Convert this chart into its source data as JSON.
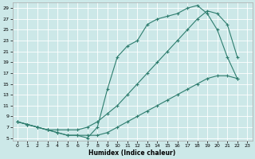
{
  "xlabel": "Humidex (Indice chaleur)",
  "background_color": "#cce8e8",
  "grid_color": "#ffffff",
  "line_color": "#2e7d6e",
  "xlim": [
    -0.5,
    23.5
  ],
  "ylim": [
    4.5,
    30
  ],
  "xticks": [
    0,
    1,
    2,
    3,
    4,
    5,
    6,
    7,
    8,
    9,
    10,
    11,
    12,
    13,
    14,
    15,
    16,
    17,
    18,
    19,
    20,
    21,
    22,
    23
  ],
  "yticks": [
    5,
    7,
    9,
    11,
    13,
    15,
    17,
    19,
    21,
    23,
    25,
    27,
    29
  ],
  "line1_x": [
    0,
    1,
    2,
    3,
    4,
    5,
    6,
    7,
    8,
    9,
    10,
    11,
    12,
    13,
    14,
    15,
    16,
    17,
    18,
    19,
    20,
    21,
    22
  ],
  "line1_y": [
    8,
    7.5,
    7,
    6.5,
    6,
    5.5,
    5.5,
    5,
    7,
    14,
    20,
    22,
    23,
    26,
    27,
    27.5,
    28,
    29,
    29.5,
    28,
    25,
    20,
    16
  ],
  "line2_x": [
    0,
    1,
    2,
    3,
    4,
    5,
    6,
    7,
    8,
    9,
    10,
    11,
    12,
    13,
    14,
    15,
    16,
    17,
    18,
    19,
    20,
    21,
    22
  ],
  "line2_y": [
    8,
    7.5,
    7,
    6.5,
    6.5,
    6.5,
    6.5,
    7,
    8,
    9.5,
    11,
    13,
    15,
    17,
    19,
    21,
    23,
    25,
    27,
    28.5,
    28,
    26,
    20
  ],
  "line3_x": [
    0,
    1,
    2,
    3,
    4,
    5,
    6,
    7,
    8,
    9,
    10,
    11,
    12,
    13,
    14,
    15,
    16,
    17,
    18,
    19,
    20,
    21,
    22
  ],
  "line3_y": [
    8,
    7.5,
    7,
    6.5,
    6,
    5.5,
    5.5,
    5.5,
    5.5,
    6,
    7,
    8,
    9,
    10,
    11,
    12,
    13,
    14,
    15,
    16,
    16.5,
    16.5,
    16
  ]
}
